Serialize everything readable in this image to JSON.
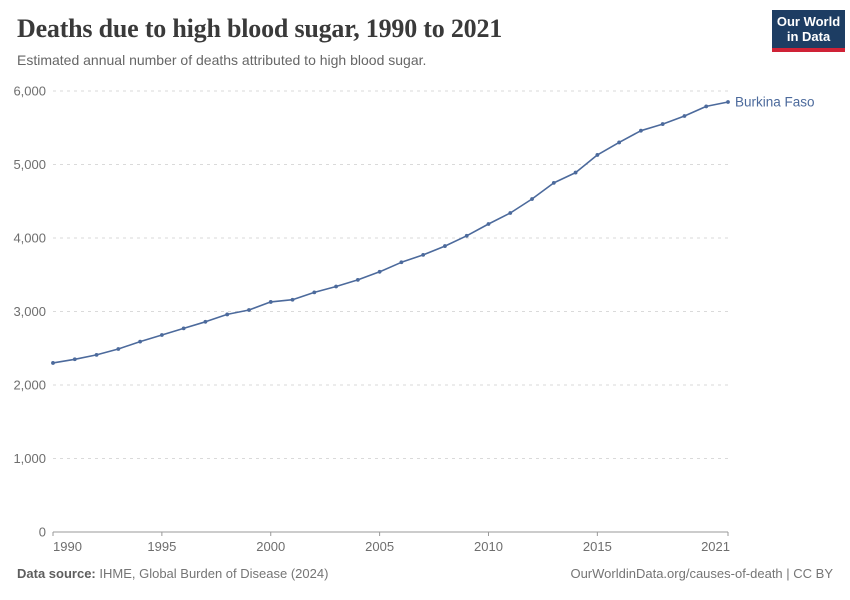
{
  "header": {
    "title": "Deaths due to high blood sugar, 1990 to 2021",
    "subtitle": "Estimated annual number of deaths attributed to high blood sugar.",
    "logo": {
      "line1": "Our World",
      "line2": "in Data"
    }
  },
  "chart_data": {
    "type": "line",
    "title": "Deaths due to high blood sugar, 1990 to 2021",
    "x": [
      1990,
      1991,
      1992,
      1993,
      1994,
      1995,
      1996,
      1997,
      1998,
      1999,
      2000,
      2001,
      2002,
      2003,
      2004,
      2005,
      2006,
      2007,
      2008,
      2009,
      2010,
      2011,
      2012,
      2013,
      2014,
      2015,
      2016,
      2017,
      2018,
      2019,
      2020,
      2021
    ],
    "series": [
      {
        "name": "Burkina Faso",
        "values": [
          2300,
          2350,
          2410,
          2490,
          2590,
          2680,
          2770,
          2860,
          2960,
          3020,
          3130,
          3160,
          3260,
          3340,
          3430,
          3540,
          3670,
          3770,
          3890,
          4030,
          4190,
          4340,
          4530,
          4750,
          4890,
          5130,
          5300,
          5460,
          5550,
          5660,
          5790,
          5850
        ]
      }
    ],
    "ylim": [
      0,
      6000
    ],
    "yticks": [
      0,
      1000,
      2000,
      3000,
      4000,
      5000,
      6000
    ],
    "ytick_labels": [
      "0",
      "1,000",
      "2,000",
      "3,000",
      "4,000",
      "5,000",
      "6,000"
    ],
    "xticks": [
      1990,
      1995,
      2000,
      2005,
      2010,
      2015,
      2021
    ],
    "xtick_labels": [
      "1990",
      "1995",
      "2000",
      "2005",
      "2010",
      "2015",
      "2021"
    ],
    "grid": "horizontal-dashed",
    "legend": "end-of-line-label",
    "markers": true
  },
  "footer": {
    "source_label": "Data source:",
    "source_text": " IHME, Global Burden of Disease (2024)",
    "credit": "OurWorldinData.org/causes-of-death | CC BY"
  },
  "colors": {
    "accent": "#4c6a9c",
    "logo_navy": "#1d3d63",
    "logo_red": "#cf2236",
    "grid": "#dadada",
    "axis": "#999999",
    "tick_text": "#6e6e6e",
    "title_text": "#3a3a3a",
    "subtitle_text": "#666666"
  }
}
